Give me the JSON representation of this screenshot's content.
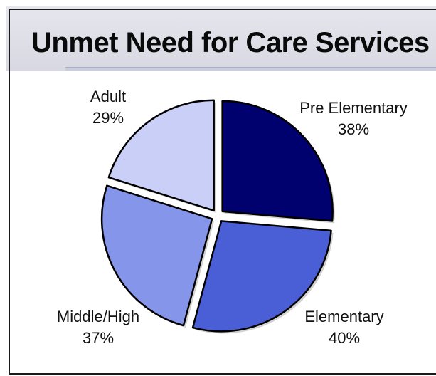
{
  "chart_data": {
    "type": "pie",
    "title": "Unmet Need for Care Services",
    "slices": [
      {
        "label": "Pre Elementary",
        "value_label": "38%",
        "value": 38,
        "color": "#00006e"
      },
      {
        "label": "Elementary",
        "value_label": "40%",
        "value": 40,
        "color": "#4a5fd6"
      },
      {
        "label": "Middle/High",
        "value_label": "37%",
        "value": 37,
        "color": "#8495ea"
      },
      {
        "label": "Adult",
        "value_label": "29%",
        "value": 29,
        "color": "#c9cff7"
      }
    ],
    "exploded": true,
    "legend": "none"
  }
}
